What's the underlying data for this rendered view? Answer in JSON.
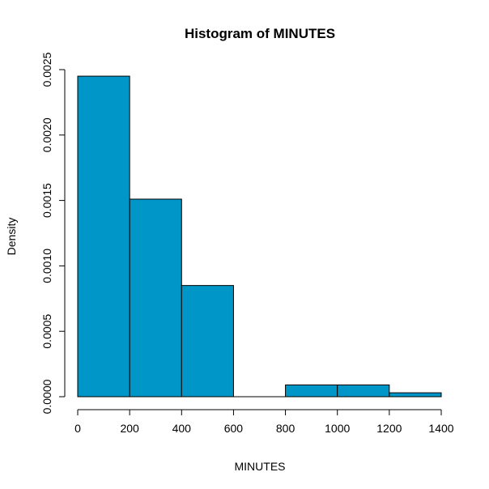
{
  "chart_data": {
    "type": "bar",
    "title": "Histogram of MINUTES",
    "xlabel": "MINUTES",
    "ylabel": "Density",
    "bins": [
      {
        "x0": 0,
        "x1": 200,
        "density": 0.00245
      },
      {
        "x0": 200,
        "x1": 400,
        "density": 0.00151
      },
      {
        "x0": 400,
        "x1": 600,
        "density": 0.00085
      },
      {
        "x0": 600,
        "x1": 800,
        "density": 0.0
      },
      {
        "x0": 800,
        "x1": 1000,
        "density": 9e-05
      },
      {
        "x0": 1000,
        "x1": 1200,
        "density": 9e-05
      },
      {
        "x0": 1200,
        "x1": 1400,
        "density": 3e-05
      }
    ],
    "xlim": [
      0,
      1400
    ],
    "ylim": [
      0,
      0.0025
    ],
    "x_ticks": [
      "0",
      "200",
      "400",
      "600",
      "800",
      "1000",
      "1200",
      "1400"
    ],
    "y_ticks": [
      "0.0000",
      "0.0005",
      "0.0010",
      "0.0015",
      "0.0020",
      "0.0025"
    ],
    "bar_color": "#0096c8",
    "border_color": "#000000",
    "grid": false,
    "legend": "none"
  }
}
